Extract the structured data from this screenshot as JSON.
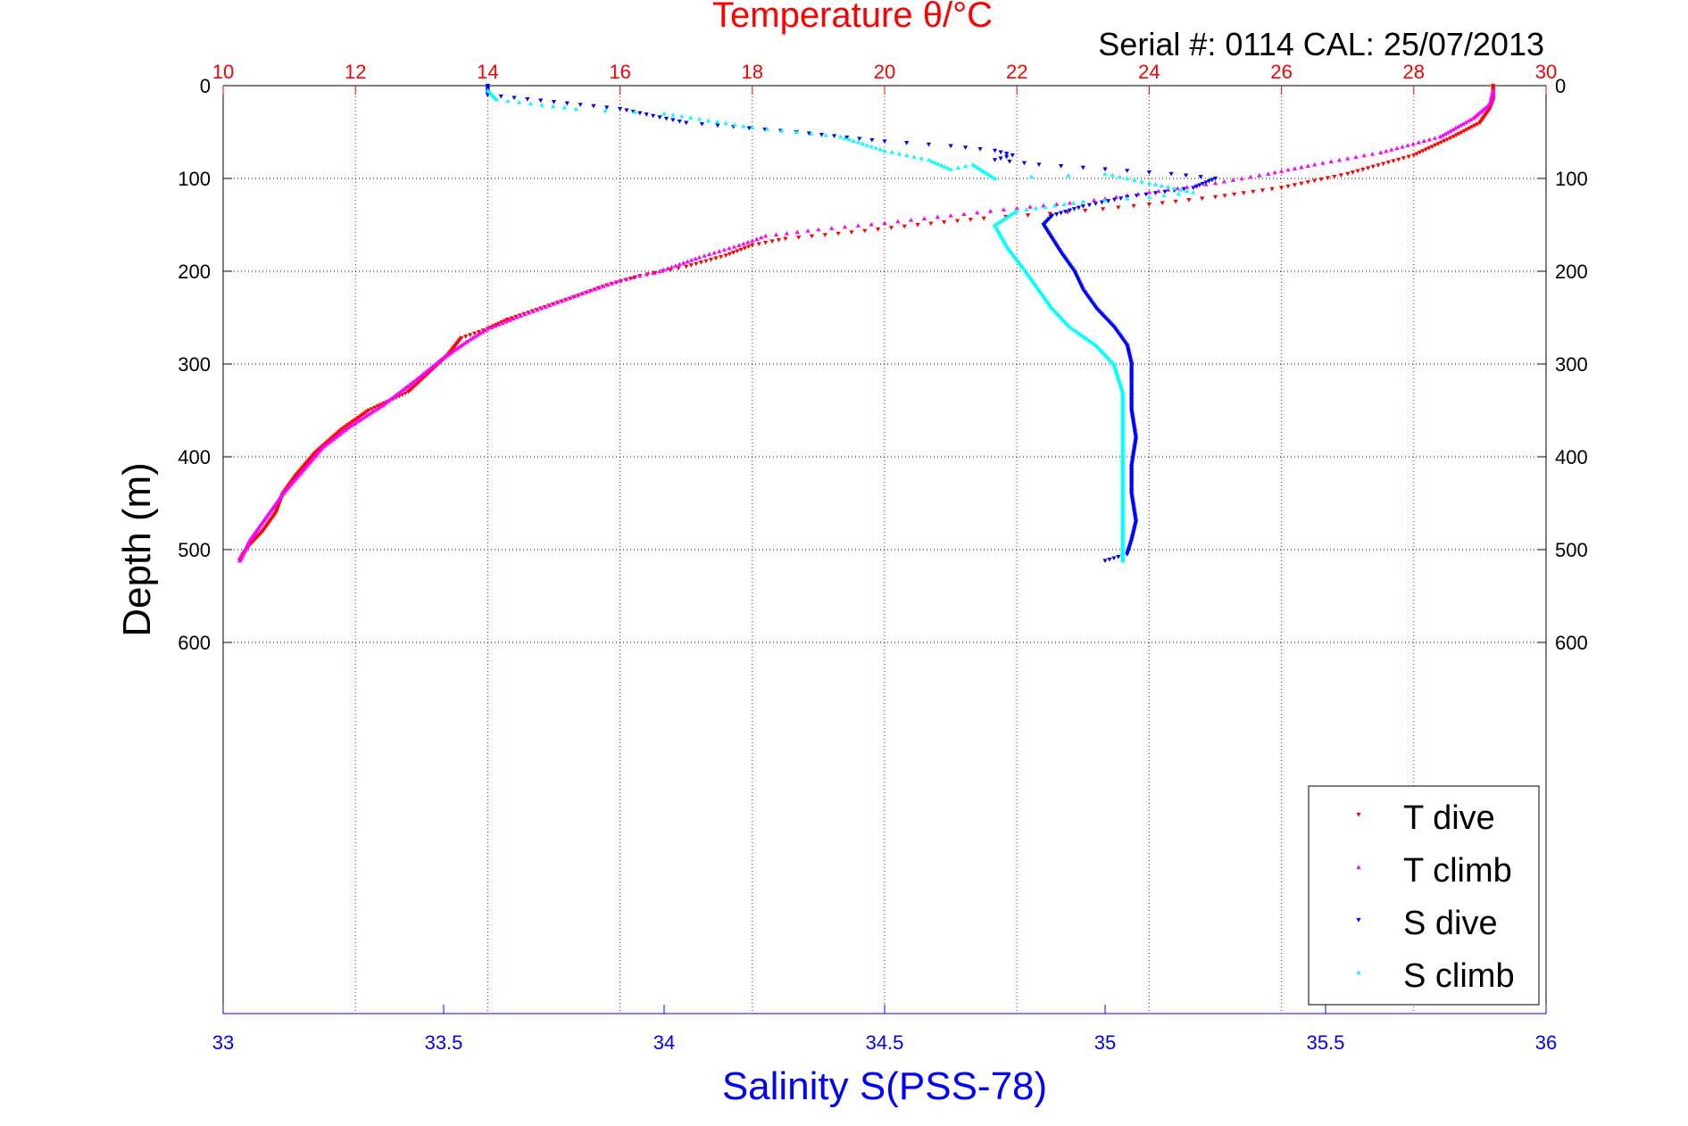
{
  "chart_data": {
    "type": "scatter",
    "title": "Temperature θ/°C",
    "subtitle": "Serial #: 0114  CAL: 25/07/2013",
    "xlabel": "Salinity S(PSS-78)",
    "ylabel": "Depth (m)",
    "y_reversed": true,
    "grid": true,
    "legend_position": "bottom-right",
    "axes": {
      "temperature": {
        "position": "top",
        "range": [
          10,
          30
        ],
        "ticks": [
          "10",
          "12",
          "14",
          "16",
          "18",
          "20",
          "22",
          "24",
          "26",
          "28",
          "30"
        ],
        "color": "#ff0000"
      },
      "salinity": {
        "position": "bottom",
        "range": [
          33,
          36
        ],
        "ticks": [
          "33",
          "33.5",
          "34",
          "34.5",
          "35",
          "35.5",
          "36"
        ],
        "color": "#0000ff"
      },
      "depth": {
        "range": [
          0,
          1000
        ],
        "ticks": [
          "0",
          "100",
          "200",
          "300",
          "400",
          "500",
          "600"
        ],
        "color": "#000000"
      }
    },
    "series": [
      {
        "name": "T dive",
        "axis": "temperature",
        "marker": "triangle-down",
        "color": "#ff0000",
        "x": [
          29.2,
          29.2,
          29.15,
          29.0,
          28.6,
          28.0,
          27.0,
          26.0,
          25.0,
          24.0,
          23.3,
          22.5,
          21.5,
          20.5,
          19.5,
          18.5,
          18.0,
          17.6,
          17.0,
          16.3,
          15.8,
          15.3,
          14.8,
          14.3,
          14.0,
          13.6,
          13.4,
          13.1,
          12.8,
          12.2,
          11.8,
          11.4,
          11.1,
          10.9,
          10.8,
          10.6,
          10.4,
          10.3,
          10.25
        ],
        "y": [
          0,
          15,
          25,
          40,
          55,
          75,
          95,
          110,
          120,
          128,
          133,
          138,
          143,
          150,
          158,
          165,
          172,
          183,
          195,
          205,
          215,
          228,
          240,
          252,
          262,
          272,
          290,
          310,
          330,
          350,
          370,
          395,
          420,
          440,
          460,
          480,
          495,
          505,
          512
        ]
      },
      {
        "name": "T climb",
        "axis": "temperature",
        "marker": "triangle-up",
        "color": "#ff00ff",
        "x": [
          29.2,
          29.15,
          28.9,
          28.4,
          27.5,
          26.5,
          25.8,
          25.0,
          24.0,
          23.0,
          22.0,
          21.0,
          20.0,
          19.0,
          18.2,
          17.8,
          17.2,
          16.6,
          16.0,
          15.5,
          15.0,
          14.5,
          14.0,
          13.7,
          13.3,
          12.9,
          12.4,
          11.9,
          11.5,
          11.2,
          10.9,
          10.6,
          10.4,
          10.3,
          10.25
        ],
        "y": [
          5,
          20,
          35,
          55,
          72,
          85,
          95,
          105,
          115,
          125,
          132,
          140,
          148,
          155,
          162,
          172,
          185,
          200,
          210,
          222,
          235,
          248,
          262,
          275,
          295,
          318,
          345,
          368,
          390,
          415,
          440,
          470,
          490,
          505,
          512
        ]
      },
      {
        "name": "S dive",
        "axis": "salinity",
        "marker": "triangle-down",
        "color": "#0000ff",
        "x": [
          33.6,
          33.6,
          33.9,
          34.05,
          34.3,
          34.5,
          34.65,
          34.75,
          34.79,
          34.75,
          34.85,
          35.0,
          35.15,
          35.25,
          35.2,
          35.05,
          34.95,
          34.88,
          34.86,
          34.88,
          34.9,
          34.93,
          34.95,
          34.98,
          35.02,
          35.05,
          35.06,
          35.06,
          35.06,
          35.07,
          35.06,
          35.06,
          35.07,
          35.06,
          35.05,
          35.0
        ],
        "y": [
          0,
          10,
          25,
          40,
          50,
          60,
          65,
          70,
          75,
          80,
          85,
          90,
          95,
          100,
          110,
          120,
          130,
          140,
          150,
          165,
          180,
          200,
          220,
          240,
          260,
          280,
          300,
          320,
          350,
          380,
          410,
          440,
          470,
          490,
          505,
          512
        ]
      },
      {
        "name": "S climb",
        "axis": "salinity",
        "marker": "triangle-up",
        "color": "#00ffff",
        "x": [
          33.6,
          33.62,
          33.8,
          34.0,
          34.2,
          34.4,
          34.5,
          34.6,
          34.65,
          34.7,
          34.75,
          35.0,
          35.1,
          35.2,
          35.1,
          34.95,
          34.8,
          34.75,
          34.78,
          34.82,
          34.85,
          34.88,
          34.92,
          34.98,
          35.02,
          35.04,
          35.04,
          35.04,
          35.04,
          35.04,
          35.04,
          35.04,
          35.04
        ],
        "y": [
          5,
          15,
          25,
          30,
          45,
          55,
          70,
          80,
          90,
          85,
          100,
          95,
          105,
          115,
          120,
          125,
          135,
          150,
          175,
          200,
          220,
          240,
          260,
          280,
          300,
          330,
          360,
          390,
          420,
          450,
          480,
          500,
          512
        ]
      }
    ],
    "legend": [
      "T dive",
      "T climb",
      "S dive",
      "S climb"
    ]
  }
}
